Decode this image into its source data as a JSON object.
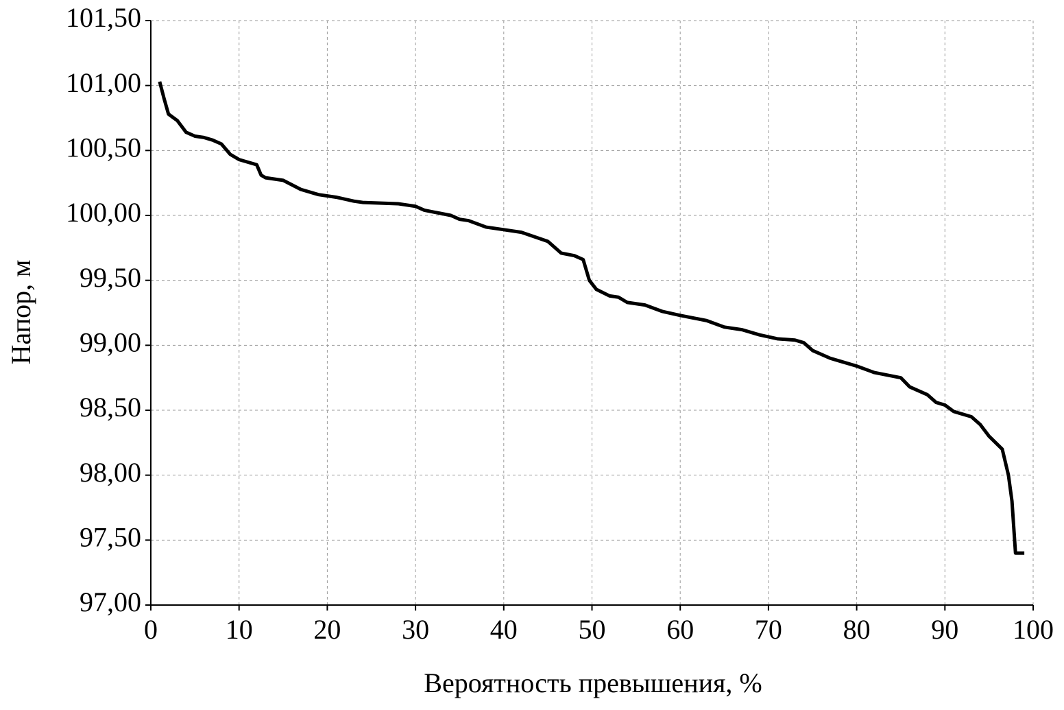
{
  "chart_data": {
    "type": "line",
    "x_label": "Вероятность превышения, %",
    "y_label": "Напор, м",
    "xlim": [
      0,
      100
    ],
    "xticks": [
      0,
      10,
      20,
      30,
      40,
      50,
      60,
      70,
      80,
      90,
      100
    ],
    "ylim": [
      97,
      101.5
    ],
    "yticks": [
      {
        "value": 97,
        "label": "97,00"
      },
      {
        "value": 97.5,
        "label": "97,50"
      },
      {
        "value": 98,
        "label": "98,00"
      },
      {
        "value": 98.5,
        "label": "98,50"
      },
      {
        "value": 99,
        "label": "99,00"
      },
      {
        "value": 99.5,
        "label": "99,50"
      },
      {
        "value": 100,
        "label": "100,00"
      },
      {
        "value": 100.5,
        "label": "100,50"
      },
      {
        "value": 101,
        "label": "101,00"
      },
      {
        "value": 101.5,
        "label": "101,50"
      }
    ],
    "grid": true,
    "series": [
      {
        "color": "#000000",
        "x": [
          1,
          1.5,
          2,
          3,
          4,
          5,
          6,
          7,
          8,
          9,
          10,
          12,
          12.5,
          13,
          15,
          17,
          19,
          21,
          23,
          24,
          28,
          30,
          31,
          34,
          35,
          36,
          38,
          40,
          42,
          45,
          46.5,
          48,
          49,
          49.7,
          50.5,
          52,
          53,
          54,
          56,
          58,
          60,
          63,
          65,
          67,
          69,
          71,
          73,
          74,
          75,
          77,
          78,
          80,
          82,
          85,
          86,
          88,
          89,
          90,
          91,
          93,
          94,
          95,
          96.5,
          97.2,
          97.6,
          98,
          99
        ],
        "values": [
          101.03,
          100.9,
          100.78,
          100.73,
          100.64,
          100.61,
          100.6,
          100.58,
          100.55,
          100.47,
          100.43,
          100.39,
          100.31,
          100.29,
          100.27,
          100.2,
          100.16,
          100.14,
          100.11,
          100.1,
          100.09,
          100.07,
          100.04,
          100.0,
          99.97,
          99.96,
          99.91,
          99.89,
          99.87,
          99.8,
          99.71,
          99.69,
          99.66,
          99.5,
          99.43,
          99.38,
          99.37,
          99.33,
          99.31,
          99.26,
          99.23,
          99.19,
          99.14,
          99.12,
          99.08,
          99.05,
          99.04,
          99.02,
          98.96,
          98.9,
          98.88,
          98.84,
          98.79,
          98.75,
          98.68,
          98.62,
          98.56,
          98.54,
          98.49,
          98.45,
          98.39,
          98.3,
          98.2,
          98.0,
          97.8,
          97.4,
          97.4
        ]
      }
    ]
  }
}
